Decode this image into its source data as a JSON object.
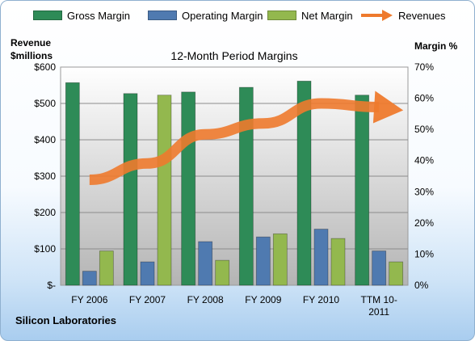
{
  "colors": {
    "gross": "#2e8b57",
    "operating": "#4f7ab0",
    "net": "#93b84e",
    "revenues": "#ee7a2d"
  },
  "legend": {
    "gross": "Gross Margin",
    "operating": "Operating Margin",
    "net": "Net Margin",
    "revenues": "Revenues"
  },
  "axis_titles": {
    "left_line1": "Revenue",
    "left_line2": "$millions",
    "right": "Margin %"
  },
  "company": "Silicon Laboratories",
  "chart_data": {
    "type": "bar",
    "title": "12-Month Period Margins",
    "categories": [
      "FY 2006",
      "FY 2007",
      "FY 2008",
      "FY 2009",
      "FY 2010",
      "TTM 10-2011"
    ],
    "category_labels": [
      [
        "FY 2006"
      ],
      [
        "FY 2007"
      ],
      [
        "FY 2008"
      ],
      [
        "FY 2009"
      ],
      [
        "FY 2010"
      ],
      [
        "TTM 10-",
        "2011"
      ]
    ],
    "series": [
      {
        "name": "Gross Margin",
        "axis": "right",
        "values": [
          65,
          61.5,
          62,
          63.5,
          65.5,
          61
        ]
      },
      {
        "name": "Operating Margin",
        "axis": "right",
        "values": [
          4.5,
          7.5,
          14,
          15.5,
          18,
          11
        ]
      },
      {
        "name": "Net Margin",
        "axis": "right",
        "values": [
          11,
          61,
          8,
          16.5,
          15,
          7.5
        ]
      },
      {
        "name": "Revenues",
        "axis": "left",
        "type": "line",
        "values": [
          290,
          335,
          415,
          445,
          500,
          490
        ]
      }
    ],
    "y_left": {
      "range": [
        0,
        600
      ],
      "ticks": [
        0,
        100,
        200,
        300,
        400,
        500,
        600
      ],
      "tick_labels": [
        "$-",
        "$100",
        "$200",
        "$300",
        "$400",
        "$500",
        "$600"
      ]
    },
    "y_right": {
      "range": [
        0,
        70
      ],
      "ticks": [
        0,
        10,
        20,
        30,
        40,
        50,
        60,
        70
      ],
      "tick_labels": [
        "0%",
        "10%",
        "20%",
        "30%",
        "40%",
        "50%",
        "60%",
        "70%"
      ]
    },
    "grid": true,
    "legend_position": "top"
  }
}
